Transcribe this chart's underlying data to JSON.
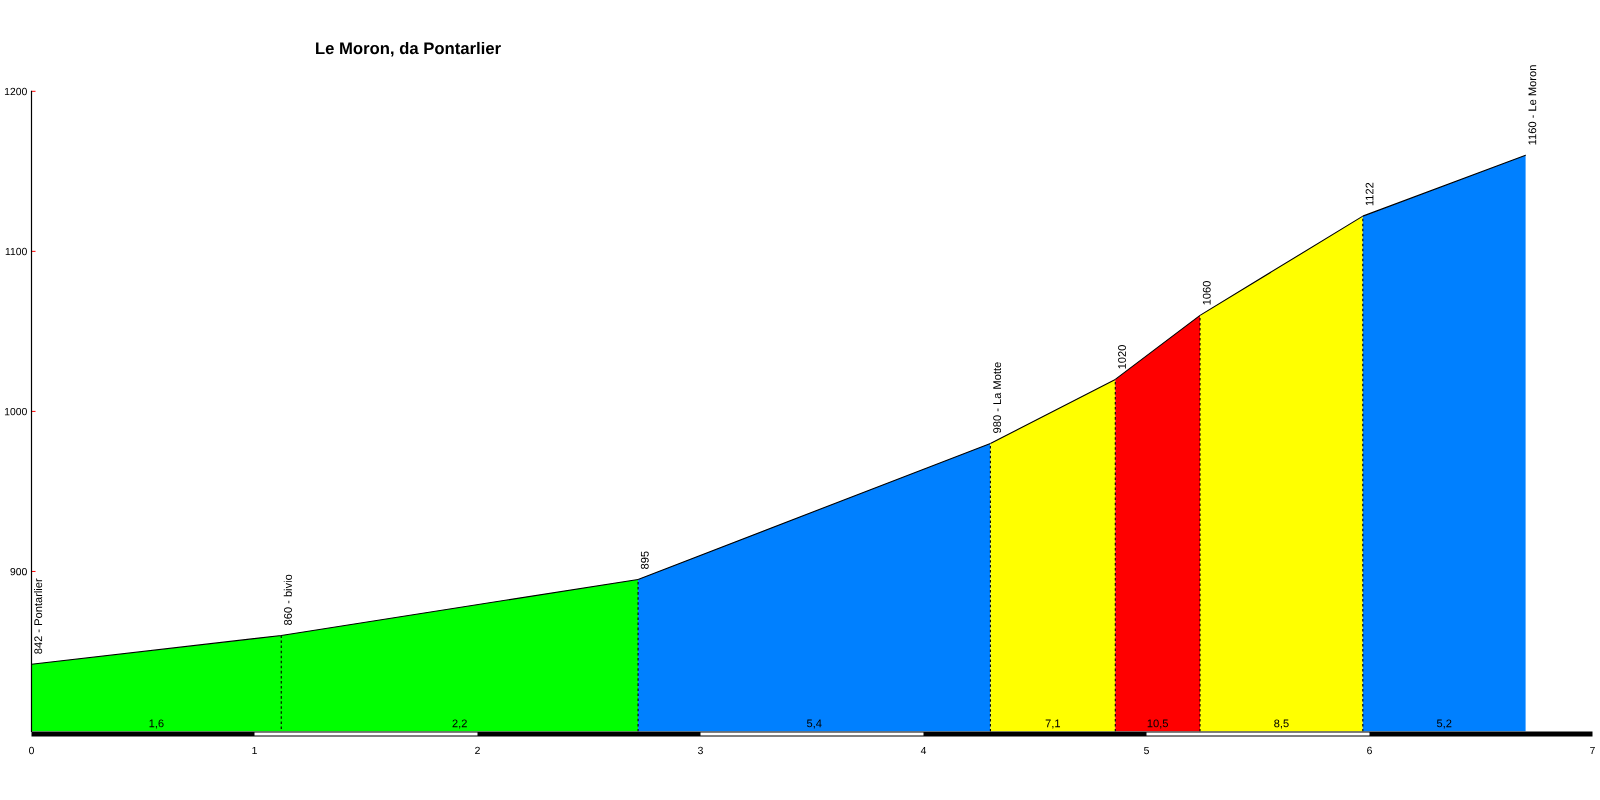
{
  "chart_data": {
    "type": "area",
    "title": "Le Moron, da Pontarlier",
    "xlim": [
      0,
      7
    ],
    "xticks": [
      0,
      1,
      2,
      3,
      4,
      5,
      6,
      7
    ],
    "ylim": [
      800,
      1200
    ],
    "yticks": [
      900,
      1000,
      1100,
      1200
    ],
    "series": [
      {
        "color": "#00ff00",
        "x": [
          0,
          1.12,
          2.72
        ],
        "values": [
          842,
          860,
          895
        ],
        "value_labels": [
          "842 - Pontarlier",
          "860 - bivio",
          null
        ]
      },
      {
        "color": "#0080ff",
        "x": [
          2.72,
          4.3
        ],
        "values": [
          895,
          980
        ],
        "value_labels": [
          "895",
          null
        ]
      },
      {
        "color": "#ffff00",
        "x": [
          4.3,
          4.86
        ],
        "values": [
          980,
          1020
        ],
        "value_labels": [
          "980 - La Motte",
          null
        ]
      },
      {
        "color": "#ff0000",
        "x": [
          4.86,
          5.24
        ],
        "values": [
          1020,
          1060
        ],
        "value_labels": [
          "1020",
          null
        ]
      },
      {
        "color": "#ffff00",
        "x": [
          5.24,
          5.97
        ],
        "values": [
          1060,
          1122
        ],
        "value_labels": [
          "1060",
          null
        ]
      },
      {
        "color": "#0080ff",
        "x": [
          5.97,
          6.7
        ],
        "values": [
          1122,
          1160
        ],
        "value_labels": [
          "1122",
          "1160 - Le Moron"
        ]
      }
    ],
    "annotations": [
      "1,6",
      "2,2",
      "5,4",
      "7,1",
      "10,5",
      "8,5",
      "5,2"
    ]
  }
}
